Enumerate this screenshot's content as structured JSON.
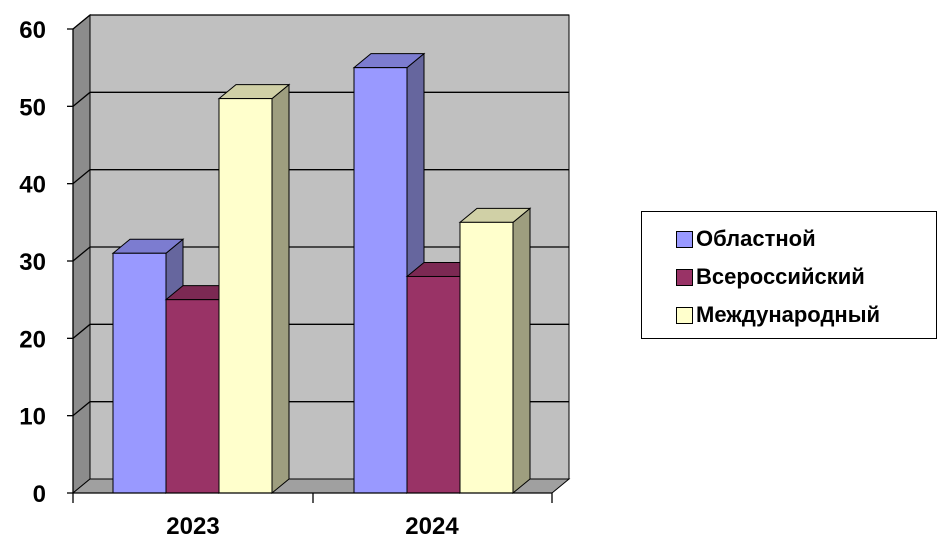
{
  "chart_data": {
    "type": "bar",
    "title": "",
    "xlabel": "",
    "ylabel": "",
    "categories": [
      "2023",
      "2024"
    ],
    "series": [
      {
        "name": "Областной",
        "values": [
          31,
          55
        ],
        "color": "#9999FF",
        "side_color": "#66669E",
        "top_color": "#7C7CD0"
      },
      {
        "name": "Всероссийский",
        "values": [
          25,
          28
        ],
        "color": "#993366",
        "side_color": "#5F2040",
        "top_color": "#7C2953"
      },
      {
        "name": "Международный",
        "values": [
          51,
          35
        ],
        "color": "#FFFFCC",
        "side_color": "#9E9E7F",
        "top_color": "#D0D0A6"
      }
    ],
    "ylim": [
      0,
      60
    ],
    "yticks": [
      0,
      10,
      20,
      30,
      40,
      50,
      60
    ],
    "grid": true,
    "legend_position": "right",
    "wall_color": "#C0C0C0",
    "floor_color": "#A0A0A0"
  }
}
